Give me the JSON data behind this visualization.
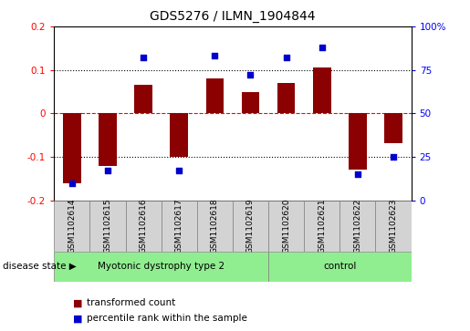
{
  "title": "GDS5276 / ILMN_1904844",
  "samples": [
    "GSM1102614",
    "GSM1102615",
    "GSM1102616",
    "GSM1102617",
    "GSM1102618",
    "GSM1102619",
    "GSM1102620",
    "GSM1102621",
    "GSM1102622",
    "GSM1102623"
  ],
  "transformed_count": [
    -0.16,
    -0.12,
    0.065,
    -0.1,
    0.08,
    0.05,
    0.07,
    0.105,
    -0.13,
    -0.068
  ],
  "percentile_rank": [
    10,
    17,
    82,
    17,
    83,
    72,
    82,
    88,
    15,
    25
  ],
  "ylim_left": [
    -0.2,
    0.2
  ],
  "ylim_right": [
    0,
    100
  ],
  "yticks_left": [
    -0.2,
    -0.1,
    0.0,
    0.1,
    0.2
  ],
  "ytick_labels_left": [
    "-0.2",
    "-0.1",
    "0",
    "0.1",
    "0.2"
  ],
  "yticks_right": [
    0,
    25,
    50,
    75,
    100
  ],
  "ytick_labels_right": [
    "0",
    "25",
    "50",
    "75",
    "100%"
  ],
  "hlines": [
    0.1,
    0.0,
    -0.1
  ],
  "hline_styles": [
    "dotted",
    "dashed",
    "dotted"
  ],
  "hline_colors": [
    "black",
    "red",
    "black"
  ],
  "disease_groups": [
    {
      "label": "Myotonic dystrophy type 2",
      "start": 0,
      "end": 6,
      "color": "#90ee90"
    },
    {
      "label": "control",
      "start": 6,
      "end": 10,
      "color": "#90ee90"
    }
  ],
  "bar_color": "#8B0000",
  "dot_color": "#0000CD",
  "bar_width": 0.5,
  "dot_size": 25,
  "disease_state_label": "disease state",
  "legend_items": [
    {
      "label": "transformed count",
      "color": "#8B0000"
    },
    {
      "label": "percentile rank within the sample",
      "color": "#0000CD"
    }
  ],
  "tick_label_fontsize": 7.5,
  "title_fontsize": 10,
  "bg_color": "#ffffff",
  "sample_box_color": "#d3d3d3",
  "sample_label_fontsize": 6.5
}
